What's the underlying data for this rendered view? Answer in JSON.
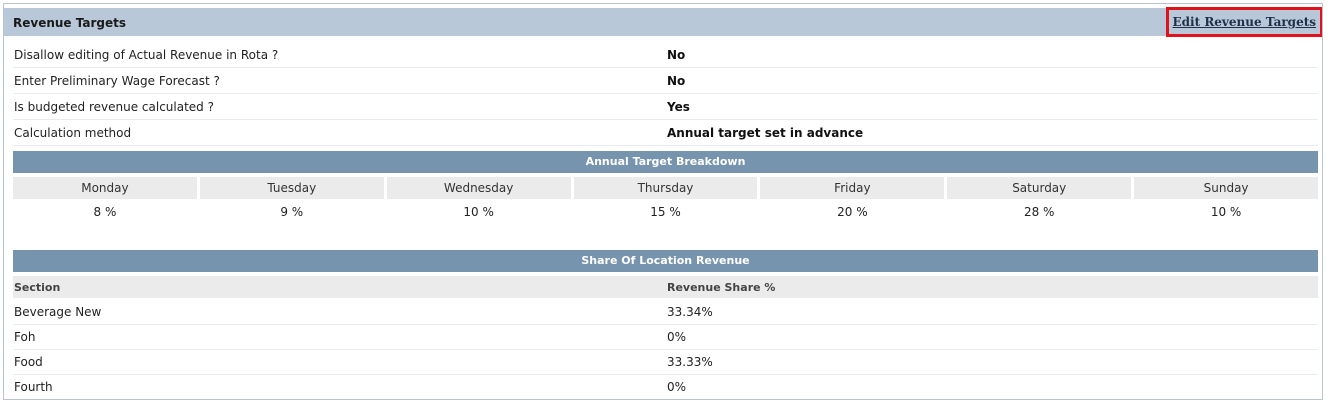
{
  "header": {
    "title": "Revenue Targets",
    "edit_link": "Edit Revenue Targets"
  },
  "settings": [
    {
      "label": "Disallow editing of Actual Revenue in Rota ?",
      "value": "No"
    },
    {
      "label": "Enter Preliminary Wage Forecast ?",
      "value": "No"
    },
    {
      "label": "Is budgeted revenue calculated ?",
      "value": "Yes"
    },
    {
      "label": "Calculation method",
      "value": "Annual target set in advance"
    }
  ],
  "annual_breakdown": {
    "title": "Annual Target Breakdown",
    "days": [
      {
        "name": "Monday",
        "value": "8 %"
      },
      {
        "name": "Tuesday",
        "value": "9 %"
      },
      {
        "name": "Wednesday",
        "value": "10 %"
      },
      {
        "name": "Thursday",
        "value": "15 %"
      },
      {
        "name": "Friday",
        "value": "20 %"
      },
      {
        "name": "Saturday",
        "value": "28 %"
      },
      {
        "name": "Sunday",
        "value": "10 %"
      }
    ]
  },
  "share": {
    "title": "Share Of Location Revenue",
    "columns": [
      "Section",
      "Revenue Share %"
    ],
    "rows": [
      {
        "section": "Beverage New",
        "share": "33.34%"
      },
      {
        "section": "Foh",
        "share": "0%"
      },
      {
        "section": "Food",
        "share": "33.33%"
      },
      {
        "section": "Fourth",
        "share": "0%"
      }
    ]
  },
  "colors": {
    "header_bg": "#b8c8d8",
    "section_header_bg": "#7794ae",
    "highlight": "#e0131d"
  }
}
